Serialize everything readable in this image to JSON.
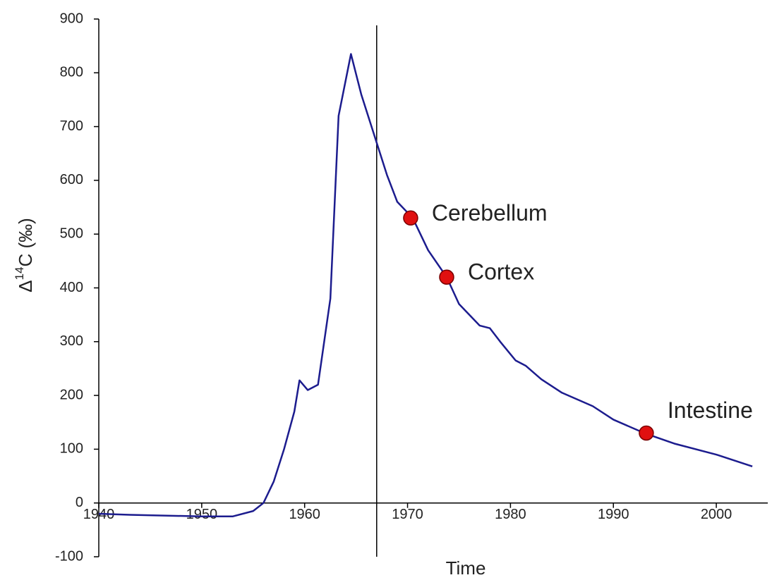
{
  "chart_data": {
    "type": "line",
    "x_label": "Time",
    "y_label": {
      "prefix": "Δ",
      "superscript": "14",
      "suffix": "C  (‰)"
    },
    "xlim": [
      1940,
      2005
    ],
    "xticks": [
      1940,
      1950,
      1960,
      1970,
      1980,
      1990,
      2000
    ],
    "ylim": [
      -100,
      900
    ],
    "yticks": [
      -100,
      0,
      100,
      200,
      300,
      400,
      500,
      600,
      700,
      800,
      900
    ],
    "vline": 1967,
    "series": [
      {
        "color": "#1c1c8e",
        "x": [
          1940,
          1943,
          1950,
          1953,
          1955,
          1956,
          1957,
          1958,
          1959,
          1959.5,
          1960.3,
          1961.3,
          1962.5,
          1963.3,
          1964.5,
          1965.5,
          1967,
          1968,
          1969,
          1970.5,
          1972,
          1973.8,
          1975,
          1977,
          1978,
          1979,
          1980.5,
          1981.5,
          1983,
          1985,
          1988,
          1990,
          1993,
          1996,
          2000,
          2003.5
        ],
        "values": [
          -20,
          -22,
          -25,
          -25,
          -15,
          0,
          40,
          100,
          170,
          228,
          210,
          220,
          380,
          720,
          835,
          760,
          670,
          610,
          560,
          530,
          470,
          420,
          370,
          330,
          325,
          300,
          265,
          255,
          230,
          205,
          180,
          155,
          130,
          110,
          90,
          68
        ]
      }
    ],
    "annotations": [
      {
        "text": "Cerebellum",
        "x": 1970.3,
        "y": 530
      },
      {
        "text": "Cortex",
        "x": 1973.8,
        "y": 420
      },
      {
        "text": "Intestine",
        "x": 1993.2,
        "y": 130
      }
    ],
    "marker_color": "#e01010"
  }
}
